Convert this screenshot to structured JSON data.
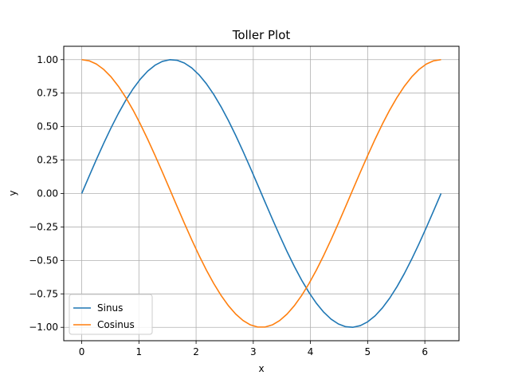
{
  "chart_data": {
    "type": "line",
    "title": "Toller Plot",
    "xlabel": "x",
    "ylabel": "y",
    "xlim": [
      -0.3142,
      6.5973
    ],
    "ylim": [
      -1.1,
      1.1
    ],
    "xticks": [
      0,
      1,
      2,
      3,
      4,
      5,
      6
    ],
    "xtick_labels": [
      "0",
      "1",
      "2",
      "3",
      "4",
      "5",
      "6"
    ],
    "yticks": [
      -1.0,
      -0.75,
      -0.5,
      -0.25,
      0.0,
      0.25,
      0.5,
      0.75,
      1.0
    ],
    "ytick_labels": [
      "−1.00",
      "−0.75",
      "−0.50",
      "−0.25",
      "0.00",
      "0.25",
      "0.50",
      "0.75",
      "1.00"
    ],
    "grid": true,
    "legend_position": "lower-left",
    "x": [
      0,
      0.6283,
      1.2566,
      1.5708,
      1.885,
      2.5133,
      3.1416,
      3.7699,
      4.3982,
      4.7124,
      5.0265,
      5.6549,
      6.2832
    ],
    "series": [
      {
        "name": "Sinus",
        "color": "#1f77b4",
        "values": [
          0,
          0.5878,
          0.9511,
          1.0,
          0.9511,
          0.5878,
          0.0,
          -0.5878,
          -0.9511,
          -1.0,
          -0.9511,
          -0.5878,
          0.0
        ]
      },
      {
        "name": "Cosinus",
        "color": "#ff7f0e",
        "values": [
          1.0,
          0.809,
          0.309,
          0.0,
          -0.309,
          -0.809,
          -1.0,
          -0.809,
          -0.309,
          0.0,
          0.309,
          0.809,
          1.0
        ]
      }
    ]
  }
}
